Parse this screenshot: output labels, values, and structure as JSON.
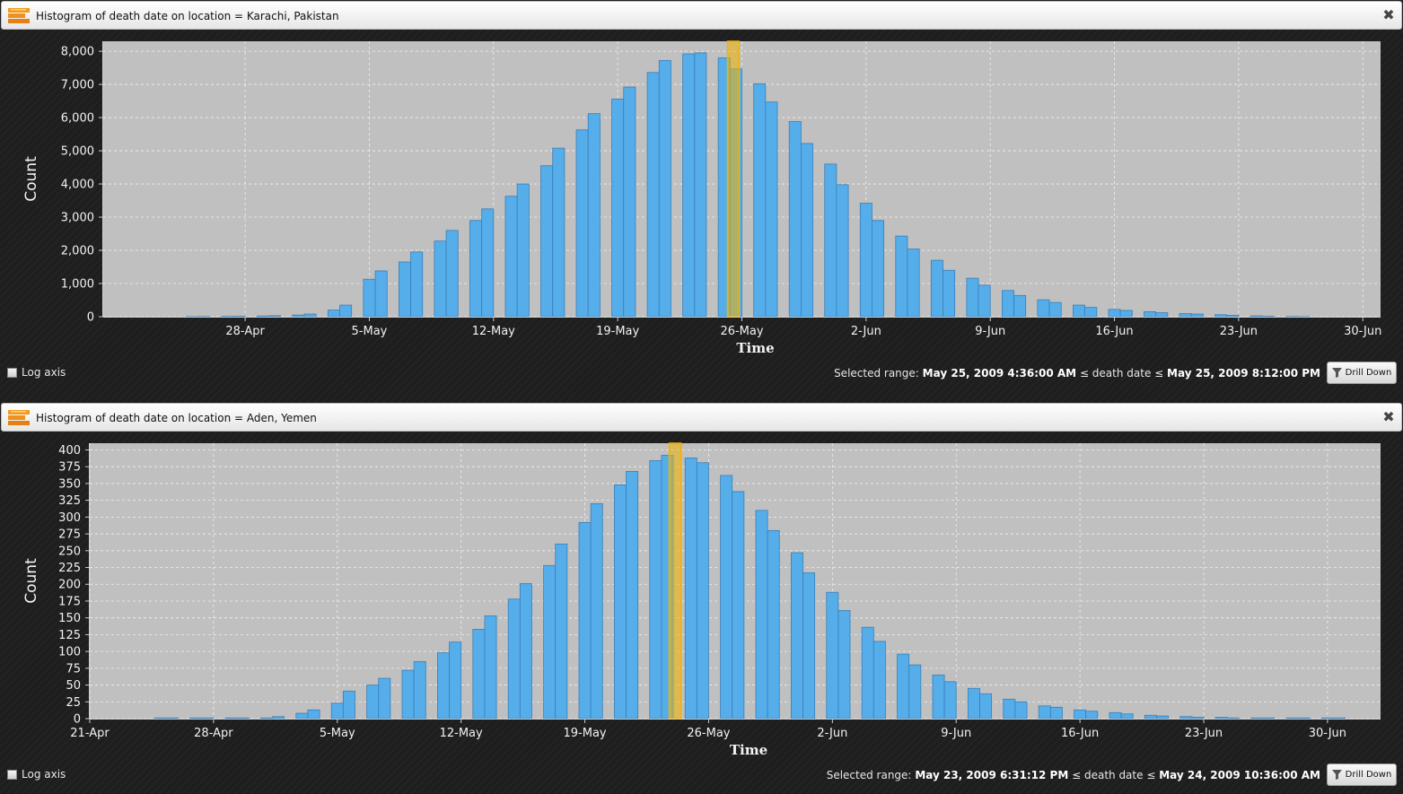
{
  "panels": [
    {
      "title": "Histogram of death date on location = Karachi, Pakistan",
      "log_axis_label": "Log axis",
      "selected_range": {
        "label": "Selected range:",
        "start": "May 25, 2009 4:36:00 AM",
        "op": "≤ death date ≤",
        "end": "May 25, 2009 8:12:00 PM"
      },
      "drill_down_label": "Drill Down"
    },
    {
      "title": "Histogram of death date on location = Aden, Yemen",
      "log_axis_label": "Log axis",
      "selected_range": {
        "label": "Selected range:",
        "start": "May 23, 2009 6:31:12 PM",
        "op": "≤ death date ≤",
        "end": "May 24, 2009 10:36:00 AM"
      },
      "drill_down_label": "Drill Down"
    }
  ],
  "colors": {
    "bar": "#55adea",
    "bar_stroke": "#3a7fb8",
    "plot_bg": "#c0c0c0",
    "selection": "#f2b300",
    "title_icon": "#f0901e"
  },
  "icons": {
    "title": "histogram-icon",
    "close": "close-icon",
    "drill": "funnel-icon"
  },
  "chart_data": [
    {
      "type": "bar",
      "title": "Histogram of death date on location = Karachi, Pakistan",
      "xlabel": "Time",
      "ylabel": "Count",
      "ylim": [
        0,
        8300
      ],
      "yticks": [
        0,
        1000,
        2000,
        3000,
        4000,
        5000,
        6000,
        7000,
        8000
      ],
      "ytick_labels": [
        "0",
        "1,000",
        "2,000",
        "3,000",
        "4,000",
        "5,000",
        "6,000",
        "7,000",
        "8,000"
      ],
      "xlim": [
        "2009-04-20",
        "2009-07-01"
      ],
      "xtick_labels": [
        "28-Apr",
        "5-May",
        "12-May",
        "19-May",
        "26-May",
        "2-Jun",
        "9-Jun",
        "16-Jun",
        "23-Jun",
        "30-Jun"
      ],
      "xtick_dates": [
        "2009-04-28",
        "2009-05-05",
        "2009-05-12",
        "2009-05-19",
        "2009-05-26",
        "2009-06-02",
        "2009-06-09",
        "2009-06-16",
        "2009-06-23",
        "2009-06-30"
      ],
      "bin_hours": 16,
      "grid": true,
      "selection": {
        "start": "2009-05-25T04:36",
        "end": "2009-05-25T20:12"
      },
      "series": [
        {
          "x": [
            "2009-04-24T16:00",
            "2009-04-25T08:00",
            "2009-04-26T16:00",
            "2009-04-27T08:00",
            "2009-04-28T16:00",
            "2009-04-29T08:00",
            "2009-04-30T16:00",
            "2009-05-01T08:00",
            "2009-05-02T16:00",
            "2009-05-03T08:00",
            "2009-05-04T16:00",
            "2009-05-05T08:00",
            "2009-05-06T16:00",
            "2009-05-07T08:00",
            "2009-05-08T16:00",
            "2009-05-09T08:00",
            "2009-05-10T16:00",
            "2009-05-11T08:00",
            "2009-05-12T16:00",
            "2009-05-13T08:00",
            "2009-05-14T16:00",
            "2009-05-15T08:00",
            "2009-05-16T16:00",
            "2009-05-17T08:00",
            "2009-05-18T16:00",
            "2009-05-19T08:00",
            "2009-05-20T16:00",
            "2009-05-21T08:00",
            "2009-05-22T16:00",
            "2009-05-23T08:00",
            "2009-05-24T16:00",
            "2009-05-25T08:00",
            "2009-05-26T16:00",
            "2009-05-27T08:00",
            "2009-05-28T16:00",
            "2009-05-29T08:00",
            "2009-05-30T16:00",
            "2009-05-31T08:00",
            "2009-06-01T16:00",
            "2009-06-02T08:00",
            "2009-06-03T16:00",
            "2009-06-04T08:00",
            "2009-06-05T16:00",
            "2009-06-06T08:00",
            "2009-06-07T16:00",
            "2009-06-08T08:00",
            "2009-06-09T16:00",
            "2009-06-10T08:00",
            "2009-06-11T16:00",
            "2009-06-12T08:00",
            "2009-06-13T16:00",
            "2009-06-14T08:00",
            "2009-06-15T16:00",
            "2009-06-16T08:00",
            "2009-06-17T16:00",
            "2009-06-18T08:00",
            "2009-06-19T16:00",
            "2009-06-20T08:00",
            "2009-06-21T16:00",
            "2009-06-22T08:00",
            "2009-06-23T16:00",
            "2009-06-24T08:00",
            "2009-06-25T16:00",
            "2009-06-26T08:00"
          ],
          "values": [
            5,
            8,
            12,
            15,
            20,
            30,
            50,
            80,
            200,
            350,
            1130,
            1380,
            1650,
            1950,
            2280,
            2600,
            2900,
            3250,
            3630,
            4000,
            4550,
            5080,
            5630,
            6120,
            6560,
            6920,
            7360,
            7720,
            7920,
            7950,
            7800,
            7470,
            7020,
            6470,
            5880,
            5220,
            4600,
            3980,
            3420,
            2900,
            2430,
            2040,
            1700,
            1400,
            1160,
            950,
            790,
            640,
            510,
            430,
            350,
            280,
            220,
            190,
            150,
            120,
            95,
            80,
            60,
            40,
            25,
            15,
            10,
            5
          ]
        }
      ]
    },
    {
      "type": "bar",
      "title": "Histogram of death date on location = Aden, Yemen",
      "xlabel": "Time",
      "ylabel": "Count",
      "ylim": [
        0,
        410
      ],
      "yticks": [
        0,
        25,
        50,
        75,
        100,
        125,
        150,
        175,
        200,
        225,
        250,
        275,
        300,
        325,
        350,
        375,
        400
      ],
      "ytick_labels": [
        "0",
        "25",
        "50",
        "75",
        "100",
        "125",
        "150",
        "175",
        "200",
        "225",
        "250",
        "275",
        "300",
        "325",
        "350",
        "375",
        "400"
      ],
      "xlim": [
        "2009-04-21",
        "2009-07-03"
      ],
      "xtick_labels": [
        "21-Apr",
        "28-Apr",
        "5-May",
        "12-May",
        "19-May",
        "26-May",
        "2-Jun",
        "9-Jun",
        "16-Jun",
        "23-Jun",
        "30-Jun"
      ],
      "xtick_dates": [
        "2009-04-21",
        "2009-04-28",
        "2009-05-05",
        "2009-05-12",
        "2009-05-19",
        "2009-05-26",
        "2009-06-02",
        "2009-06-09",
        "2009-06-16",
        "2009-06-23",
        "2009-06-30"
      ],
      "bin_hours": 16,
      "grid": true,
      "selection": {
        "start": "2009-05-23T18:31",
        "end": "2009-05-24T10:36"
      },
      "series": [
        {
          "x": [
            "2009-04-24T16:00",
            "2009-04-25T08:00",
            "2009-04-26T16:00",
            "2009-04-27T08:00",
            "2009-04-28T16:00",
            "2009-04-29T08:00",
            "2009-04-30T16:00",
            "2009-05-01T08:00",
            "2009-05-02T16:00",
            "2009-05-03T08:00",
            "2009-05-04T16:00",
            "2009-05-05T08:00",
            "2009-05-06T16:00",
            "2009-05-07T08:00",
            "2009-05-08T16:00",
            "2009-05-09T08:00",
            "2009-05-10T16:00",
            "2009-05-11T08:00",
            "2009-05-12T16:00",
            "2009-05-13T08:00",
            "2009-05-14T16:00",
            "2009-05-15T08:00",
            "2009-05-16T16:00",
            "2009-05-17T08:00",
            "2009-05-18T16:00",
            "2009-05-19T08:00",
            "2009-05-20T16:00",
            "2009-05-21T08:00",
            "2009-05-22T16:00",
            "2009-05-23T08:00",
            "2009-05-24T16:00",
            "2009-05-25T08:00",
            "2009-05-26T16:00",
            "2009-05-27T08:00",
            "2009-05-28T16:00",
            "2009-05-29T08:00",
            "2009-05-30T16:00",
            "2009-05-31T08:00",
            "2009-06-01T16:00",
            "2009-06-02T08:00",
            "2009-06-03T16:00",
            "2009-06-04T08:00",
            "2009-06-05T16:00",
            "2009-06-06T08:00",
            "2009-06-07T16:00",
            "2009-06-08T08:00",
            "2009-06-09T16:00",
            "2009-06-10T08:00",
            "2009-06-11T16:00",
            "2009-06-12T08:00",
            "2009-06-13T16:00",
            "2009-06-14T08:00",
            "2009-06-15T16:00",
            "2009-06-16T08:00",
            "2009-06-17T16:00",
            "2009-06-18T08:00",
            "2009-06-19T16:00",
            "2009-06-20T08:00",
            "2009-06-21T16:00",
            "2009-06-22T08:00",
            "2009-06-23T16:00",
            "2009-06-24T08:00",
            "2009-06-25T16:00",
            "2009-06-26T08:00",
            "2009-06-27T16:00",
            "2009-06-28T08:00",
            "2009-06-29T16:00",
            "2009-06-30T08:00"
          ],
          "values": [
            1,
            1,
            1,
            1,
            1,
            1,
            1,
            3,
            8,
            13,
            23,
            41,
            50,
            60,
            72,
            85,
            98,
            114,
            133,
            153,
            178,
            201,
            228,
            260,
            292,
            320,
            348,
            368,
            384,
            392,
            388,
            381,
            362,
            338,
            310,
            280,
            247,
            217,
            188,
            161,
            136,
            115,
            96,
            80,
            65,
            55,
            45,
            37,
            29,
            25,
            19,
            17,
            13,
            11,
            9,
            7,
            5,
            4,
            3,
            2,
            2,
            1,
            1,
            1,
            1,
            1,
            1,
            1
          ]
        }
      ]
    }
  ]
}
